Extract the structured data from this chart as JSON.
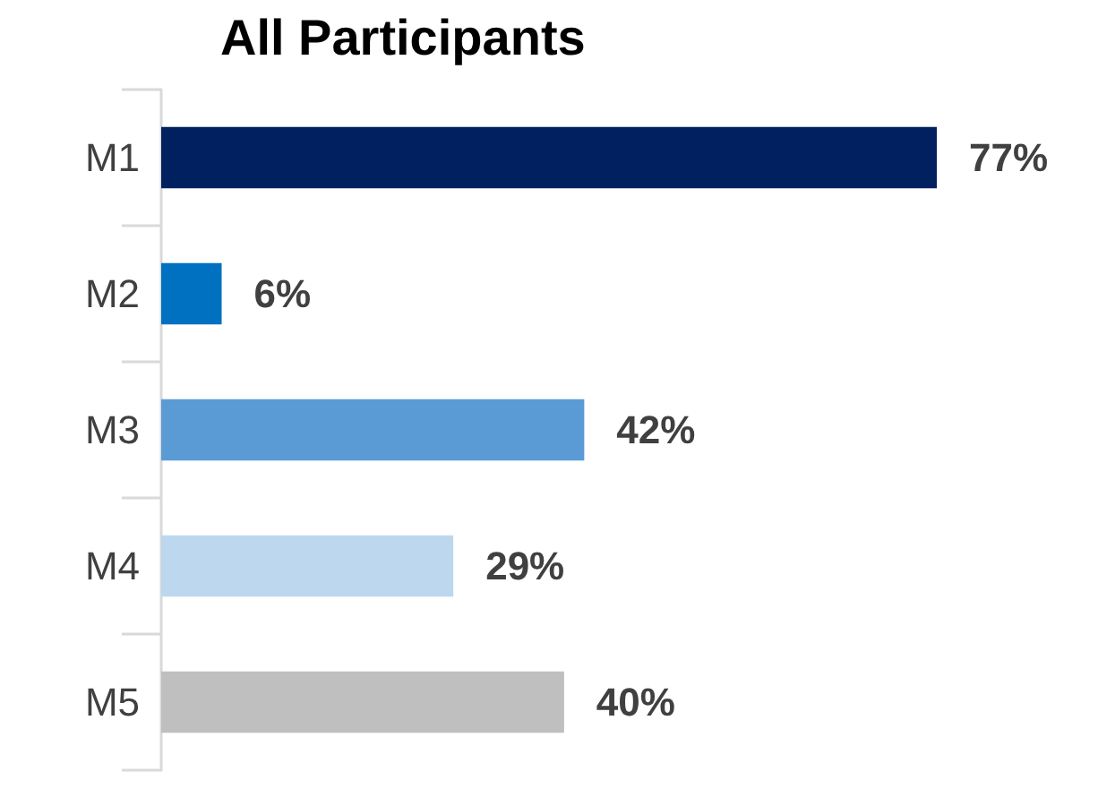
{
  "chart_data": {
    "type": "bar",
    "orientation": "horizontal",
    "title": "All Participants",
    "categories": [
      "M1",
      "M2",
      "M3",
      "M4",
      "M5"
    ],
    "values": [
      77,
      6,
      42,
      29,
      40
    ],
    "colors": [
      "#002060",
      "#0070c0",
      "#5b9bd5",
      "#bdd7ee",
      "#bfbfbf"
    ],
    "value_labels": [
      "77%",
      "6%",
      "42%",
      "29%",
      "40%"
    ],
    "tick_labels": "y"
  }
}
